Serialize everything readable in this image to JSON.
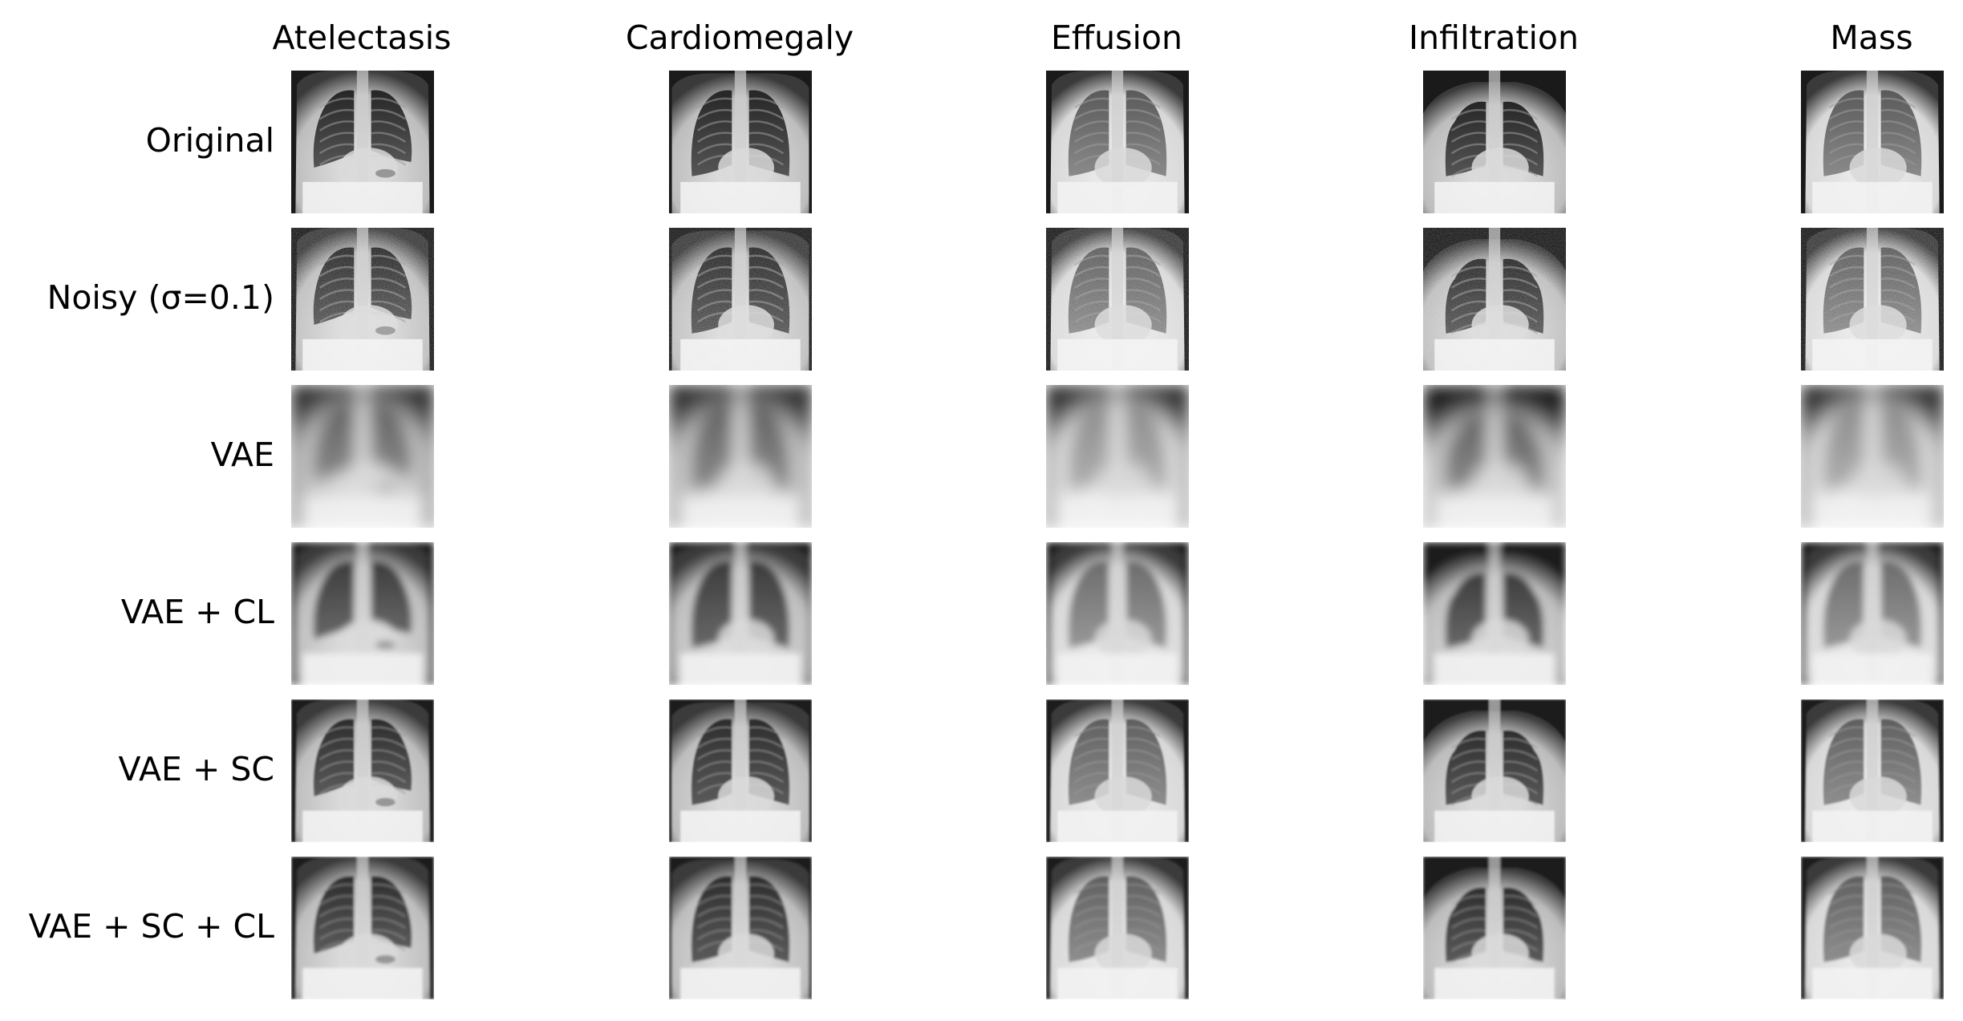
{
  "figure": {
    "columns": [
      {
        "id": "atelectasis",
        "label": "Atelectasis",
        "style": {
          "shape": "tall",
          "heart": 0.55,
          "stomach": true
        }
      },
      {
        "id": "cardiomegaly",
        "label": "Cardiomegaly",
        "style": {
          "shape": "wide",
          "heart": 0.45,
          "stomach": false
        }
      },
      {
        "id": "effusion",
        "label": "Effusion",
        "style": {
          "shape": "light",
          "heart": 0.5,
          "stomach": false
        }
      },
      {
        "id": "infiltration",
        "label": "Infiltration",
        "style": {
          "shape": "shoulders",
          "heart": 0.5,
          "stomach": false
        }
      },
      {
        "id": "mass",
        "label": "Mass",
        "style": {
          "shape": "light",
          "heart": 0.5,
          "stomach": false
        }
      }
    ],
    "rows": [
      {
        "id": "original",
        "label": "Original",
        "rendering": {
          "blur": 0,
          "noise": 0,
          "contrast": 1.0
        }
      },
      {
        "id": "noisy",
        "label": "Noisy (σ=0.1)",
        "rendering": {
          "blur": 0,
          "noise": 0.1,
          "contrast": 1.0
        }
      },
      {
        "id": "vae",
        "label": "VAE",
        "rendering": {
          "blur": 9,
          "noise": 0,
          "contrast": 0.6
        }
      },
      {
        "id": "vae-cl",
        "label": "VAE + CL",
        "rendering": {
          "blur": 4,
          "noise": 0,
          "contrast": 0.85
        }
      },
      {
        "id": "vae-sc",
        "label": "VAE + SC",
        "rendering": {
          "blur": 1,
          "noise": 0,
          "contrast": 0.95
        }
      },
      {
        "id": "vae-sc-cl",
        "label": "VAE + SC + CL",
        "rendering": {
          "blur": 1.5,
          "noise": 0,
          "contrast": 0.95
        }
      }
    ],
    "colors": {
      "background": "#ffffff",
      "lung_dark": "#2a2a2a",
      "body_light": "#e6e6e6",
      "edge_dark": "#0a0a0a"
    }
  }
}
